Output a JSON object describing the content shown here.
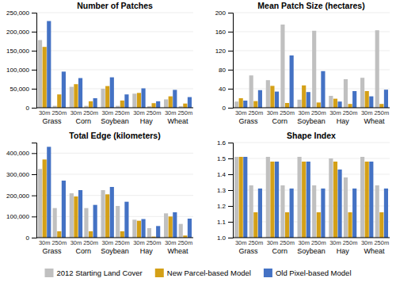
{
  "chart_data": [
    {
      "type": "bar",
      "title": "Number of Patches",
      "categories": [
        "30m",
        "250m",
        "30m",
        "250m",
        "30m",
        "250m",
        "30m",
        "250m",
        "30m",
        "250m"
      ],
      "groups": [
        "Grass",
        "Corn",
        "Soybean",
        "Hay",
        "Wheat"
      ],
      "series": [
        {
          "name": "2012 Starting Land Cover",
          "color": "#c0c0c0",
          "values": [
            178000,
            5000,
            55000,
            5000,
            50000,
            5000,
            37000,
            4000,
            22000,
            4000
          ]
        },
        {
          "name": "New Parcel-based Model",
          "color": "#d4a017",
          "values": [
            160000,
            35000,
            62000,
            17000,
            57000,
            19000,
            39000,
            12000,
            30000,
            11000
          ]
        },
        {
          "name": "Old Pixel-based Model",
          "color": "#4472c4",
          "values": [
            228000,
            95000,
            78000,
            25000,
            80000,
            35000,
            51000,
            17000,
            47000,
            28000
          ]
        }
      ],
      "ylim": [
        0,
        250000
      ],
      "yticks": [
        0,
        {
          "value": 50000,
          "label": "50,000"
        },
        {
          "value": 100000,
          "label": "100,000"
        },
        {
          "value": 150000,
          "label": "150,000"
        },
        {
          "value": 200000,
          "label": "200,000"
        },
        {
          "value": 250000,
          "label": "250,000"
        }
      ],
      "grid": true,
      "legend": "bottom"
    },
    {
      "type": "bar",
      "title": "Mean Patch Size (hectares)",
      "categories": [
        "30m",
        "250m",
        "30m",
        "250m",
        "30m",
        "250m",
        "30m",
        "250m",
        "30m",
        "250m"
      ],
      "groups": [
        "Grass",
        "Corn",
        "Soybean",
        "Hay",
        "Wheat"
      ],
      "series": [
        {
          "color": "#c0c0c0",
          "values": [
            13,
            68,
            58,
            175,
            17,
            162,
            25,
            60,
            63,
            163
          ]
        },
        {
          "color": "#d4a017",
          "values": [
            20,
            14,
            46,
            10,
            47,
            11,
            19,
            8,
            35,
            8
          ]
        },
        {
          "color": "#4472c4",
          "values": [
            15,
            37,
            34,
            110,
            33,
            77,
            13,
            35,
            24,
            38
          ]
        }
      ],
      "ylim": [
        0,
        200
      ],
      "yticks": [
        0,
        40,
        80,
        120,
        160,
        200
      ],
      "grid": true
    },
    {
      "type": "bar",
      "title": "Total Edge (kilometers)",
      "categories": [
        "30m",
        "250m",
        "30m",
        "250m",
        "30m",
        "250m",
        "30m",
        "250m",
        "30m",
        "250m"
      ],
      "groups": [
        "Grass",
        "Corn",
        "Soybean",
        "Hay",
        "Wheat"
      ],
      "series": [
        {
          "color": "#c0c0c0",
          "values": [
            325000,
            140000,
            210000,
            140000,
            225000,
            150000,
            85000,
            45000,
            115000,
            65000
          ]
        },
        {
          "color": "#d4a017",
          "values": [
            370000,
            30000,
            195000,
            30000,
            205000,
            30000,
            80000,
            5000,
            100000,
            10000
          ]
        },
        {
          "color": "#4472c4",
          "values": [
            430000,
            270000,
            225000,
            155000,
            240000,
            170000,
            88000,
            55000,
            120000,
            90000
          ]
        }
      ],
      "ylim": [
        0,
        450000
      ],
      "yticks": [
        0,
        {
          "value": 100000,
          "label": "100,000"
        },
        {
          "value": 200000,
          "label": "200,000"
        },
        {
          "value": 300000,
          "label": "300,000"
        },
        {
          "value": 400000,
          "label": "400,000"
        }
      ],
      "grid": true
    },
    {
      "type": "bar",
      "title": "Shape Index",
      "categories": [
        "30m",
        "250m",
        "30m",
        "250m",
        "30m",
        "250m",
        "30m",
        "250m",
        "30m",
        "250m"
      ],
      "groups": [
        "Grass",
        "Corn",
        "Soybean",
        "Hay",
        "Wheat"
      ],
      "series": [
        {
          "color": "#c0c0c0",
          "values": [
            1.51,
            1.33,
            1.51,
            1.33,
            1.51,
            1.33,
            1.5,
            1.38,
            1.51,
            1.33
          ]
        },
        {
          "color": "#d4a017",
          "values": [
            1.51,
            1.16,
            1.48,
            1.16,
            1.48,
            1.16,
            1.48,
            1.16,
            1.48,
            1.16
          ]
        },
        {
          "color": "#4472c4",
          "values": [
            1.51,
            1.31,
            1.48,
            1.31,
            1.48,
            1.31,
            1.43,
            1.31,
            1.48,
            1.31
          ]
        }
      ],
      "ylim": [
        1.0,
        1.6
      ],
      "yticks": [
        {
          "value": 1.0,
          "label": "1.0"
        },
        1.1,
        1.2,
        1.3,
        1.4,
        1.5,
        {
          "value": 1.6,
          "label": "1.6"
        }
      ],
      "grid": true
    }
  ]
}
